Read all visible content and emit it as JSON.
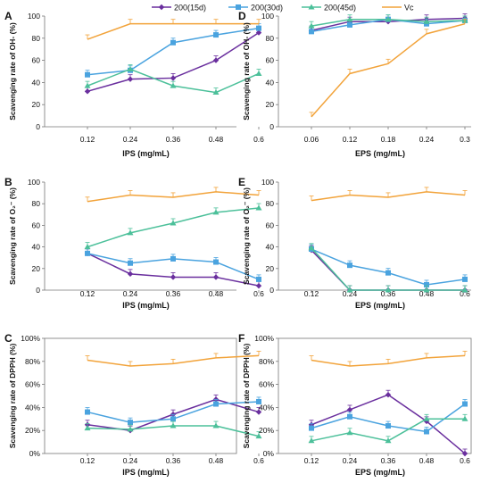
{
  "legend": [
    {
      "label": "200(15d)",
      "color": "#6a2f9e",
      "marker": "diamond"
    },
    {
      "label": "200(30d)",
      "color": "#4aa3df",
      "marker": "square"
    },
    {
      "label": "200(45d)",
      "color": "#4cc09a",
      "marker": "triangle"
    },
    {
      "label": "Vc",
      "color": "#f2a33a",
      "marker": "none"
    }
  ],
  "chart_data": [
    {
      "panel": "A",
      "type": "line",
      "x": [
        "0.12",
        "0.24",
        "0.36",
        "0.48",
        "0.6"
      ],
      "xlabel": "IPS  (mg/mL)",
      "ylabel": "Scavenging rate of OH- (%)",
      "ylim": [
        0,
        100
      ],
      "yticks": [
        "0",
        "20",
        "40",
        "60",
        "80",
        "100"
      ],
      "series": [
        {
          "name": "200(15d)",
          "values": [
            32,
            43,
            44,
            60,
            85
          ]
        },
        {
          "name": "200(30d)",
          "values": [
            47,
            51,
            76,
            83,
            89
          ]
        },
        {
          "name": "200(45d)",
          "values": [
            37,
            52,
            37,
            31,
            48
          ]
        },
        {
          "name": "Vc",
          "values": [
            79,
            93,
            93,
            93,
            93
          ]
        }
      ]
    },
    {
      "panel": "B",
      "type": "line",
      "x": [
        "0.12",
        "0.24",
        "0.36",
        "0.48",
        "0.6"
      ],
      "xlabel": "IPS  (mg/mL)",
      "ylabel": "Scavenging rate of O₂⁻ (%)",
      "ylim": [
        0,
        100
      ],
      "yticks": [
        "0",
        "20",
        "40",
        "60",
        "80",
        "100"
      ],
      "series": [
        {
          "name": "200(15d)",
          "values": [
            34,
            15,
            12,
            12,
            4
          ]
        },
        {
          "name": "200(30d)",
          "values": [
            34,
            25,
            29,
            26,
            10
          ]
        },
        {
          "name": "200(45d)",
          "values": [
            40,
            53,
            62,
            72,
            76
          ]
        },
        {
          "name": "Vc",
          "values": [
            82,
            88,
            86,
            91,
            88
          ]
        }
      ]
    },
    {
      "panel": "C",
      "type": "line",
      "x": [
        "0.12",
        "0.24",
        "0.36",
        "0.48",
        "0.6"
      ],
      "xlabel": "IPS  (mg/mL)",
      "ylabel": "Scavenging rate of  DPPH (%)",
      "ylim": [
        0,
        100
      ],
      "yticks": [
        "0%",
        "20%",
        "40%",
        "60%",
        "80%",
        "100%"
      ],
      "series": [
        {
          "name": "200(15d)",
          "values": [
            25,
            20,
            34,
            47,
            36
          ]
        },
        {
          "name": "200(30d)",
          "values": [
            36,
            27,
            30,
            43,
            45
          ]
        },
        {
          "name": "200(45d)",
          "values": [
            22,
            21,
            24,
            24,
            15
          ]
        },
        {
          "name": "Vc",
          "values": [
            81,
            76,
            78,
            83,
            85
          ]
        }
      ]
    },
    {
      "panel": "D",
      "type": "line",
      "x": [
        "0.06",
        "0.12",
        "0.18",
        "0.24",
        "0.3"
      ],
      "xlabel": "EPS  (mg/mL)",
      "ylabel": "Scavenging rate of OH- (%)",
      "ylim": [
        0,
        100
      ],
      "yticks": [
        "0",
        "20",
        "40",
        "60",
        "80",
        "100"
      ],
      "series": [
        {
          "name": "200(15d)",
          "values": [
            87,
            95,
            95,
            97,
            98
          ]
        },
        {
          "name": "200(30d)",
          "values": [
            86,
            92,
            97,
            93,
            96
          ]
        },
        {
          "name": "200(45d)",
          "values": [
            91,
            97,
            97,
            95,
            96
          ]
        },
        {
          "name": "Vc",
          "values": [
            9,
            48,
            57,
            84,
            93
          ]
        }
      ]
    },
    {
      "panel": "E",
      "type": "line",
      "x": [
        "0.12",
        "0.24",
        "0.36",
        "0.48",
        "0.6"
      ],
      "xlabel": "EPS  (mg/mL)",
      "ylabel": "Scavenging rate of O₂⁻ (%)",
      "ylim": [
        0,
        100
      ],
      "yticks": [
        "0",
        "20",
        "40",
        "60",
        "80",
        "100"
      ],
      "series": [
        {
          "name": "200(15d)",
          "values": [
            37,
            0,
            0,
            0,
            0
          ]
        },
        {
          "name": "200(30d)",
          "values": [
            38,
            23,
            16,
            5,
            10
          ]
        },
        {
          "name": "200(45d)",
          "values": [
            39,
            0,
            0,
            0,
            0
          ]
        },
        {
          "name": "Vc",
          "values": [
            83,
            88,
            86,
            91,
            88
          ]
        }
      ]
    },
    {
      "panel": "F",
      "type": "line",
      "x": [
        "0.12",
        "0.24",
        "0.36",
        "0.48",
        "0.6"
      ],
      "xlabel": "EPS  (mg/mL)",
      "ylabel": "Scavenging rate of DPPH (%)",
      "ylim": [
        0,
        100
      ],
      "yticks": [
        "0%",
        "20%",
        "40%",
        "60%",
        "80%",
        "100%"
      ],
      "series": [
        {
          "name": "200(15d)",
          "values": [
            25,
            38,
            51,
            28,
            0
          ]
        },
        {
          "name": "200(30d)",
          "values": [
            22,
            32,
            24,
            19,
            43
          ]
        },
        {
          "name": "200(45d)",
          "values": [
            11,
            18,
            11,
            30,
            30
          ]
        },
        {
          "name": "Vc",
          "values": [
            81,
            76,
            78,
            83,
            85
          ]
        }
      ]
    }
  ]
}
